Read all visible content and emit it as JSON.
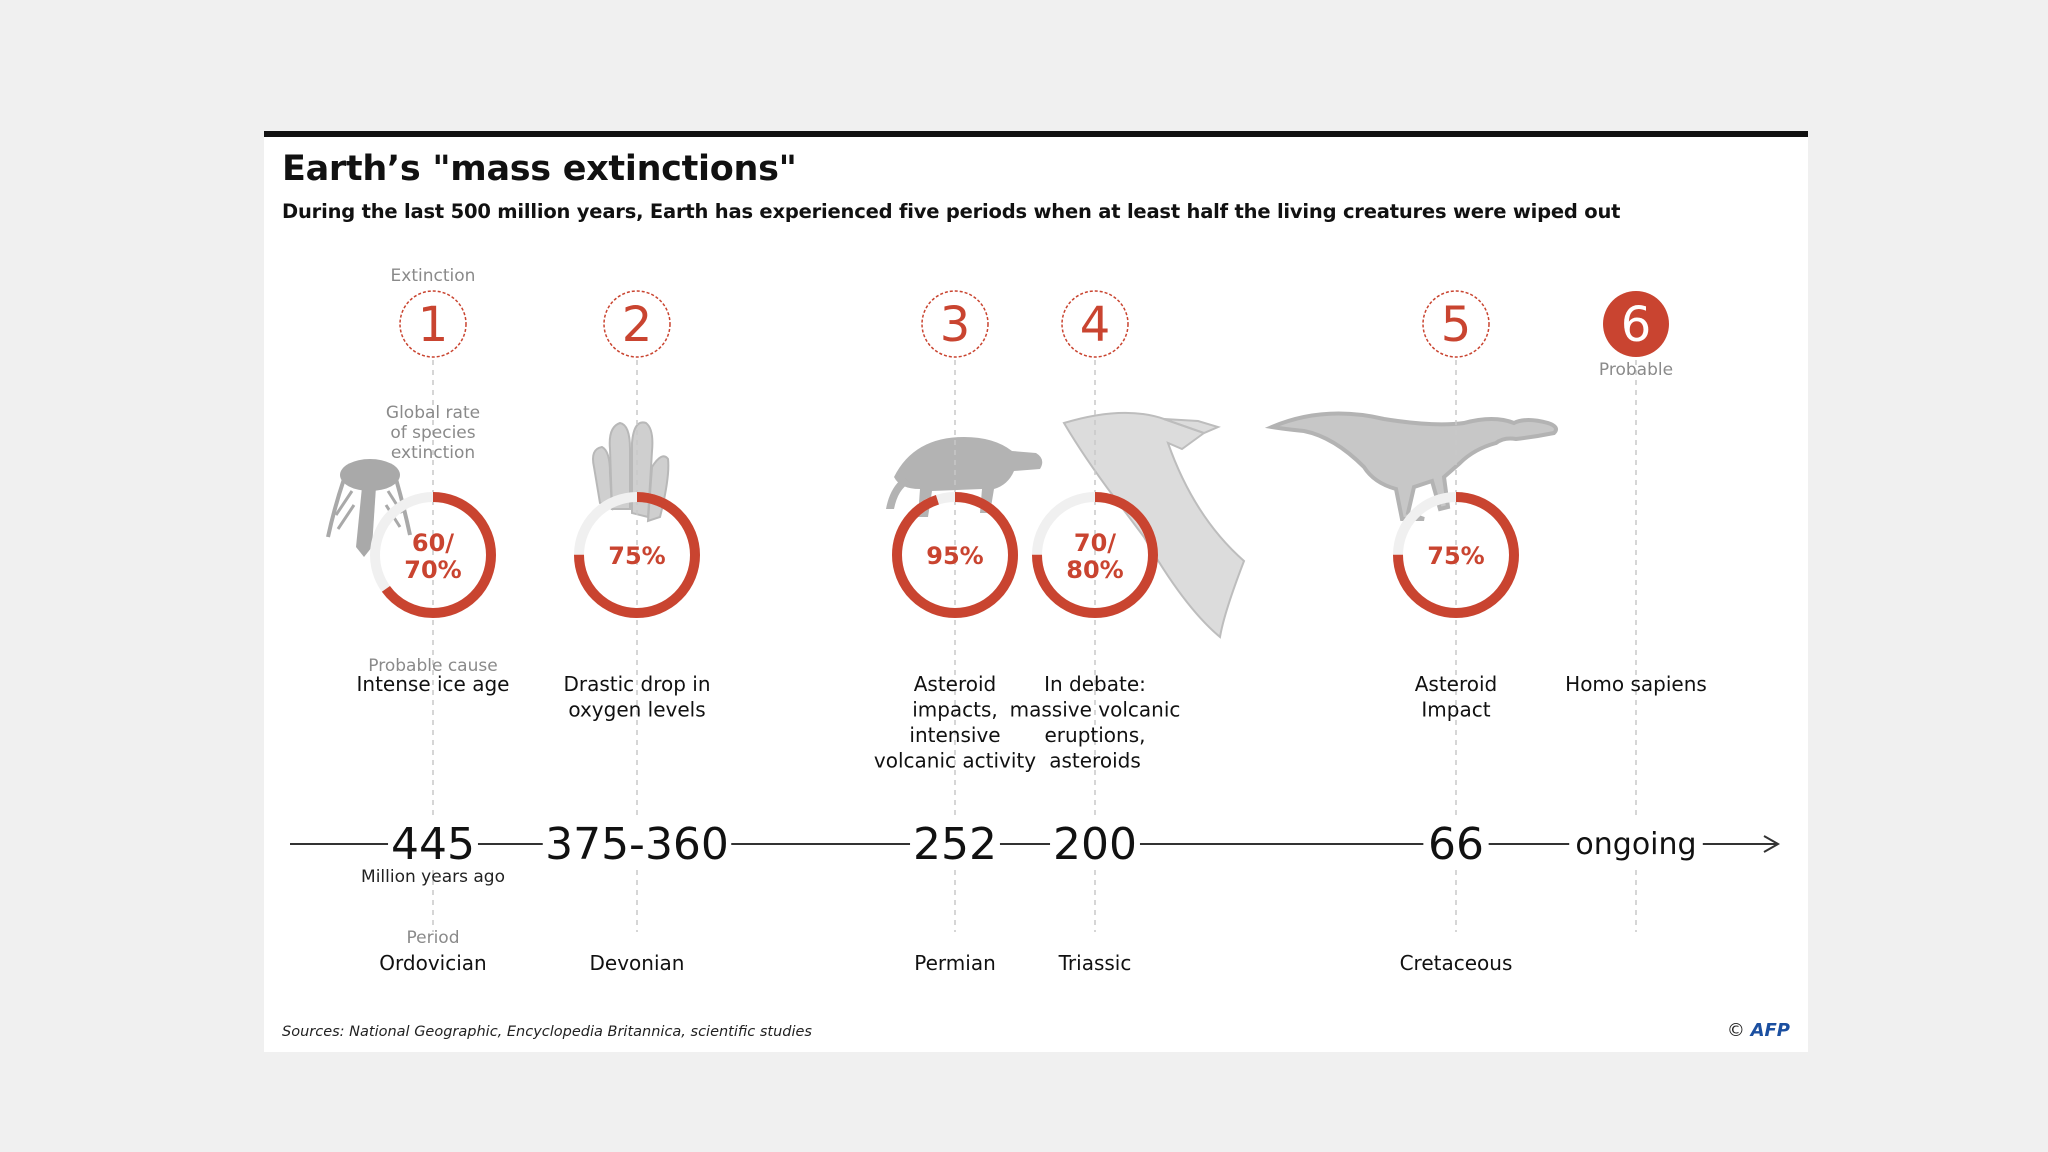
{
  "title": "Earth’s \"mass extinctions\"",
  "subtitle": "During the last 500 million years, Earth has experienced five periods when at least half the living creatures were wiped out",
  "labels": {
    "extinction": "Extinction",
    "global_rate": [
      "Global rate",
      "of species",
      "extinction"
    ],
    "probable_cause": "Probable cause",
    "million_years_ago": "Million years ago",
    "period": "Period",
    "probable": "Probable"
  },
  "extinctions": [
    {
      "number": "1",
      "rate_lines": [
        "60/",
        "70%"
      ],
      "rate_value": 65,
      "cause_lines": [
        "Intense ice age"
      ],
      "date": "445",
      "period": "Ordovician",
      "silhouette": "trilobite-icon"
    },
    {
      "number": "2",
      "rate_lines": [
        "75%"
      ],
      "rate_value": 75,
      "cause_lines": [
        "Drastic drop in",
        "oxygen levels"
      ],
      "date": "375-360",
      "period": "Devonian",
      "silhouette": "coral-icon"
    },
    {
      "number": "3",
      "rate_lines": [
        "95%"
      ],
      "rate_value": 95,
      "cause_lines": [
        "Asteroid",
        "impacts,",
        "intensive",
        "volcanic activity"
      ],
      "date": "252",
      "period": "Permian",
      "silhouette": "reptile-skeleton-icon"
    },
    {
      "number": "4",
      "rate_lines": [
        "70/",
        "80%"
      ],
      "rate_value": 75,
      "cause_lines": [
        "In debate:",
        "massive volcanic",
        "eruptions,",
        "asteroids"
      ],
      "date": "200",
      "period": "Triassic",
      "silhouette": "pterosaur-icon"
    },
    {
      "number": "5",
      "rate_lines": [
        "75%"
      ],
      "rate_value": 75,
      "cause_lines": [
        "Asteroid",
        "Impact"
      ],
      "date": "66",
      "period": "Cretaceous",
      "silhouette": "dinosaur-skeleton-icon"
    },
    {
      "number": "6",
      "cause_lines": [
        "Homo sapiens"
      ],
      "date": "ongoing",
      "probable": true
    }
  ],
  "sources": "Sources: National Geographic, Encyclopedia Britannica, scientific studies",
  "credit": {
    "symbol": "©",
    "agency": "AFP"
  },
  "colors": {
    "accent": "#c94430",
    "ring_track": "#f0f0f0",
    "label_gray": "#8a8a8a",
    "text": "#111111"
  }
}
